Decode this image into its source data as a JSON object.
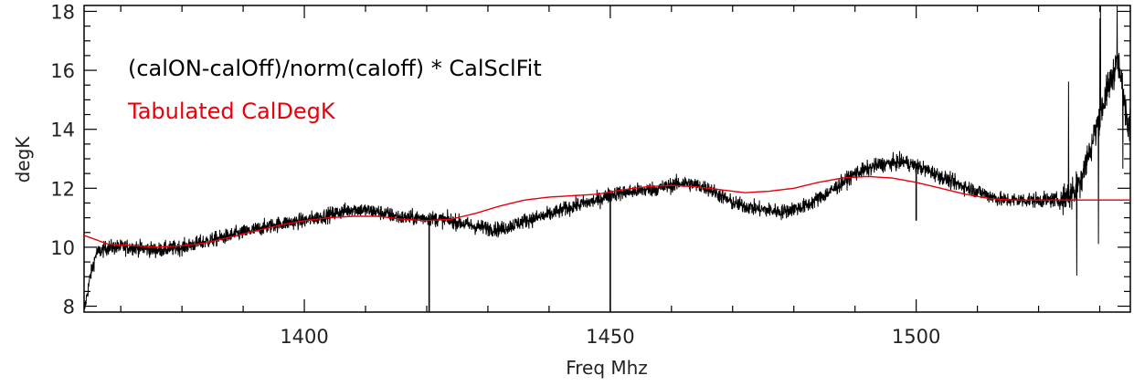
{
  "chart_data": {
    "type": "line",
    "title": "",
    "xlabel": "Freq Mhz",
    "ylabel": "degK",
    "xlim": [
      1364,
      1535
    ],
    "ylim": [
      7.8,
      18.2
    ],
    "x_ticks": [
      {
        "value": 1400,
        "label": "1400"
      },
      {
        "value": 1450,
        "label": "1450"
      },
      {
        "value": 1500,
        "label": "1500"
      }
    ],
    "y_ticks": [
      {
        "value": 8,
        "label": "8"
      },
      {
        "value": 10,
        "label": "10"
      },
      {
        "value": 12,
        "label": "12"
      },
      {
        "value": 14,
        "label": "14"
      },
      {
        "value": 16,
        "label": "16"
      },
      {
        "value": 18,
        "label": "18"
      }
    ],
    "legend_placement": "top-left",
    "grid": false,
    "series": [
      {
        "name": "(calON-calOff)/norm(caloff) * CalSclFit",
        "color": "#000000",
        "noise": 0.26,
        "x": [
          1364,
          1365,
          1366,
          1368,
          1372,
          1376,
          1380,
          1384,
          1388,
          1392,
          1396,
          1400,
          1404,
          1408,
          1412,
          1416,
          1420,
          1424,
          1428,
          1432,
          1436,
          1440,
          1444,
          1448,
          1450,
          1454,
          1458,
          1462,
          1466,
          1470,
          1474,
          1478,
          1482,
          1486,
          1490,
          1494,
          1498,
          1502,
          1506,
          1510,
          1514,
          1518,
          1522,
          1524,
          1526,
          1528,
          1530,
          1532,
          1533,
          1534,
          1535
        ],
        "y": [
          7.8,
          9.0,
          9.8,
          10.0,
          10.0,
          9.9,
          10.0,
          10.2,
          10.4,
          10.6,
          10.8,
          10.9,
          11.1,
          11.3,
          11.2,
          11.0,
          11.0,
          10.9,
          10.7,
          10.6,
          10.9,
          11.1,
          11.4,
          11.6,
          11.8,
          11.9,
          12.0,
          12.2,
          12.0,
          11.5,
          11.3,
          11.2,
          11.4,
          11.9,
          12.5,
          12.8,
          12.9,
          12.6,
          12.2,
          11.9,
          11.6,
          11.6,
          11.6,
          11.6,
          11.9,
          13.0,
          14.5,
          15.8,
          16.3,
          15.0,
          14.0
        ],
        "spikes": [
          {
            "x": 1420.4,
            "y": 7.8
          },
          {
            "x": 1450.0,
            "y": 7.8
          },
          {
            "x": 1500.0,
            "y": 10.9
          }
        ]
      },
      {
        "name": "Tabulated CalDegK",
        "color": "#e8000b",
        "x": [
          1364,
          1368,
          1372,
          1376,
          1380,
          1384,
          1388,
          1392,
          1396,
          1400,
          1404,
          1408,
          1412,
          1416,
          1420,
          1424,
          1428,
          1432,
          1436,
          1440,
          1444,
          1448,
          1452,
          1456,
          1460,
          1464,
          1468,
          1472,
          1476,
          1480,
          1484,
          1488,
          1492,
          1496,
          1500,
          1504,
          1508,
          1512,
          1516,
          1520,
          1524,
          1528,
          1535
        ],
        "y": [
          10.4,
          10.1,
          10.05,
          10.0,
          10.05,
          10.15,
          10.35,
          10.55,
          10.75,
          10.9,
          11.0,
          11.05,
          11.05,
          10.95,
          10.9,
          10.95,
          11.15,
          11.4,
          11.6,
          11.7,
          11.75,
          11.8,
          11.95,
          12.05,
          12.1,
          12.05,
          11.95,
          11.85,
          11.9,
          12.0,
          12.2,
          12.35,
          12.4,
          12.35,
          12.2,
          12.0,
          11.8,
          11.65,
          11.6,
          11.6,
          11.6,
          11.6,
          11.6
        ]
      }
    ]
  }
}
